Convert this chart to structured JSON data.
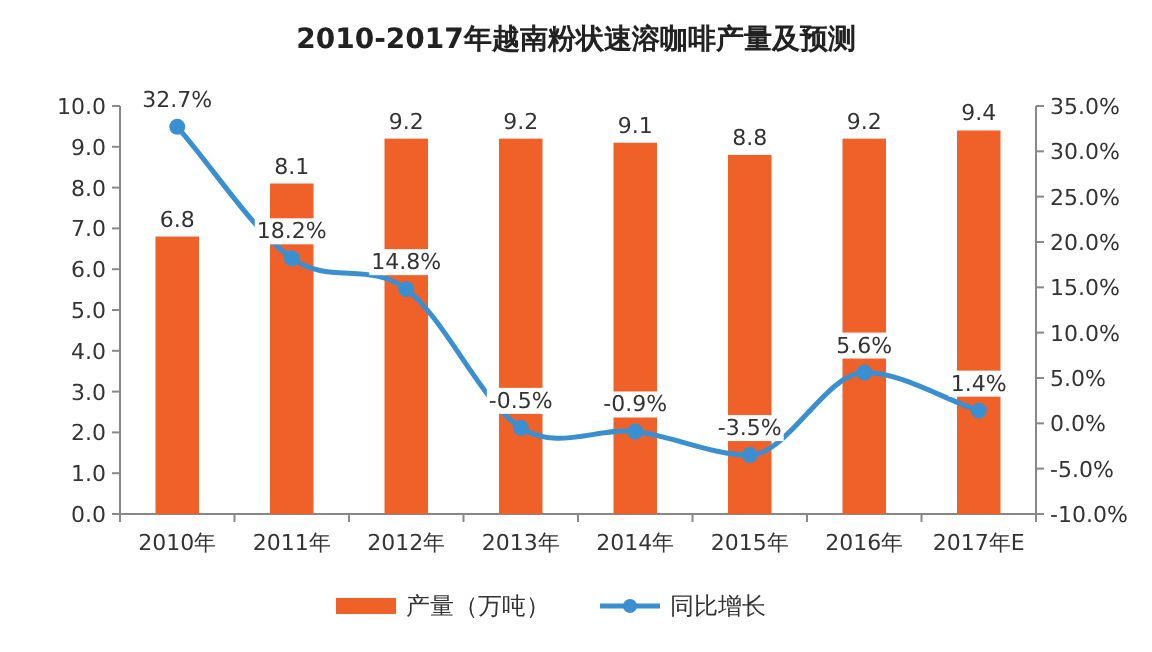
{
  "chart_data": {
    "type": "bar",
    "title": "2010-2017年越南粉状速溶咖啡产量及预测",
    "categories": [
      "2010年",
      "2011年",
      "2012年",
      "2013年",
      "2014年",
      "2015年",
      "2016年",
      "2017年E"
    ],
    "series": [
      {
        "name": "产量（万吨）",
        "color": "#f0612a",
        "values": [
          6.8,
          8.1,
          9.2,
          9.2,
          9.1,
          8.8,
          9.2,
          9.4
        ],
        "value_labels": [
          "6.8",
          "8.1",
          "9.2",
          "9.2",
          "9.1",
          "8.8",
          "9.2",
          "9.4"
        ]
      },
      {
        "name": "同比增长",
        "type": "line",
        "axis": "y2",
        "color": "#3a8fd0",
        "values": [
          32.7,
          18.2,
          14.8,
          -0.5,
          -0.9,
          -3.5,
          5.6,
          1.4
        ],
        "value_labels": [
          "32.7%",
          "18.2%",
          "14.8%",
          "-0.5%",
          "-0.9%",
          "-3.5%",
          "5.6%",
          "1.4%"
        ]
      }
    ],
    "ylim": [
      0,
      10
    ],
    "yticks": [
      {
        "value": 0,
        "label": "0.0"
      },
      {
        "value": 1,
        "label": "1.0"
      },
      {
        "value": 2,
        "label": "2.0"
      },
      {
        "value": 3,
        "label": "3.0"
      },
      {
        "value": 4,
        "label": "4.0"
      },
      {
        "value": 5,
        "label": "5.0"
      },
      {
        "value": 6,
        "label": "6.0"
      },
      {
        "value": 7,
        "label": "7.0"
      },
      {
        "value": 8,
        "label": "8.0"
      },
      {
        "value": 9,
        "label": "9.0"
      },
      {
        "value": 10,
        "label": "10.0"
      }
    ],
    "y2lim": [
      -10,
      35
    ],
    "y2ticks": [
      {
        "value": -10,
        "label": "-10.0%"
      },
      {
        "value": -5,
        "label": "-5.0%"
      },
      {
        "value": 0,
        "label": "0.0%"
      },
      {
        "value": 5,
        "label": "5.0%"
      },
      {
        "value": 10,
        "label": "10.0%"
      },
      {
        "value": 15,
        "label": "15.0%"
      },
      {
        "value": 20,
        "label": "20.0%"
      },
      {
        "value": 25,
        "label": "25.0%"
      },
      {
        "value": 30,
        "label": "30.0%"
      },
      {
        "value": 35,
        "label": "35.0%"
      }
    ],
    "legend": "bottom",
    "marker": "circle"
  }
}
